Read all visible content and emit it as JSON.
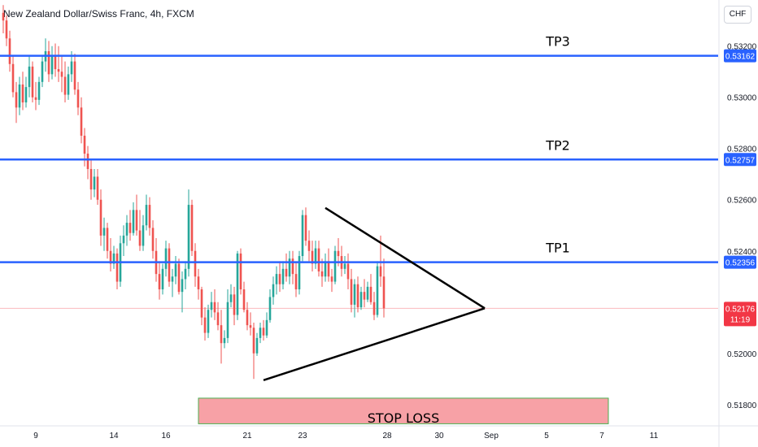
{
  "header": {
    "symbol_title": "New Zealand Dollar/Swiss Franc, 4h, FXCM",
    "currency_button": "CHF"
  },
  "colors": {
    "bull": "#26a69a",
    "bear": "#ef5350",
    "level_line": "#2962ff",
    "current_price": "#f23645",
    "stop_loss_fill": "#f7a1a6",
    "stop_loss_border": "#4caf50",
    "triangle": "#000000"
  },
  "chart_data": {
    "type": "candlestick",
    "title": "New Zealand Dollar/Swiss Franc, 4h, FXCM",
    "y_range": [
      0.5172,
      0.5338
    ],
    "y_ticks": [
      "0.53200",
      "0.53000",
      "0.52800",
      "0.52600",
      "0.52400",
      "0.52000",
      "0.51800"
    ],
    "x_ticks": [
      {
        "label": "9",
        "bar": 10
      },
      {
        "label": "14",
        "bar": 34
      },
      {
        "label": "16",
        "bar": 50
      },
      {
        "label": "21",
        "bar": 75
      },
      {
        "label": "23",
        "bar": 92
      },
      {
        "label": "28",
        "bar": 118
      },
      {
        "label": "30",
        "bar": 134
      },
      {
        "label": "Sep",
        "bar": 150
      },
      {
        "label": "5",
        "bar": 167
      },
      {
        "label": "7",
        "bar": 184
      },
      {
        "label": "11",
        "bar": 200
      }
    ],
    "levels": [
      {
        "name": "TP3",
        "value": 0.53162,
        "label": "0.53162"
      },
      {
        "name": "TP2",
        "value": 0.52757,
        "label": "0.52757"
      },
      {
        "name": "TP1",
        "value": 0.52356,
        "label": "0.52356"
      }
    ],
    "current_price": {
      "value": 0.52176,
      "label": "0.52176",
      "countdown": "11:19"
    },
    "stop_loss": {
      "label": "STOP LOSS",
      "from_bar": 60,
      "to_bar": 186,
      "top": 0.51825,
      "bottom": 0.51725
    },
    "triangle": {
      "upper_start": {
        "bar": 99,
        "value": 0.52568
      },
      "lower_start": {
        "bar": 80,
        "value": 0.51895
      },
      "apex": {
        "bar": 148,
        "value": 0.52176
      }
    },
    "candles": [
      [
        0.5333,
        0.5336,
        0.5325,
        0.533
      ],
      [
        0.533,
        0.5332,
        0.532,
        0.5323
      ],
      [
        0.5323,
        0.5326,
        0.531,
        0.5313
      ],
      [
        0.5313,
        0.5316,
        0.53,
        0.5302
      ],
      [
        0.5302,
        0.5306,
        0.529,
        0.5296
      ],
      [
        0.5296,
        0.5308,
        0.5293,
        0.5305
      ],
      [
        0.5305,
        0.531,
        0.5295,
        0.5298
      ],
      [
        0.5298,
        0.5308,
        0.5296,
        0.5304
      ],
      [
        0.5304,
        0.5316,
        0.53,
        0.5312
      ],
      [
        0.5312,
        0.5314,
        0.5298,
        0.53
      ],
      [
        0.53,
        0.5306,
        0.5295,
        0.5299
      ],
      [
        0.5299,
        0.5308,
        0.5297,
        0.5306
      ],
      [
        0.5306,
        0.5316,
        0.5304,
        0.5314
      ],
      [
        0.5314,
        0.5323,
        0.531,
        0.5318
      ],
      [
        0.5318,
        0.5322,
        0.5306,
        0.5309
      ],
      [
        0.5309,
        0.532,
        0.5307,
        0.5316
      ],
      [
        0.5316,
        0.5321,
        0.5308,
        0.5311
      ],
      [
        0.5311,
        0.532,
        0.5306,
        0.531
      ],
      [
        0.531,
        0.5316,
        0.5302,
        0.5308
      ],
      [
        0.5308,
        0.5314,
        0.5298,
        0.5301
      ],
      [
        0.5301,
        0.5312,
        0.5299,
        0.5309
      ],
      [
        0.5309,
        0.5318,
        0.5306,
        0.5314
      ],
      [
        0.5314,
        0.5317,
        0.5301,
        0.5303
      ],
      [
        0.5303,
        0.5306,
        0.5293,
        0.5296
      ],
      [
        0.5296,
        0.53,
        0.5282,
        0.5285
      ],
      [
        0.5285,
        0.5288,
        0.5273,
        0.5278
      ],
      [
        0.5278,
        0.5281,
        0.5268,
        0.5272
      ],
      [
        0.5272,
        0.5276,
        0.526,
        0.5264
      ],
      [
        0.5264,
        0.5272,
        0.5261,
        0.5269
      ],
      [
        0.5269,
        0.5272,
        0.5258,
        0.526
      ],
      [
        0.526,
        0.5264,
        0.5242,
        0.5246
      ],
      [
        0.5246,
        0.5253,
        0.524,
        0.5249
      ],
      [
        0.5249,
        0.5251,
        0.5237,
        0.524
      ],
      [
        0.524,
        0.5245,
        0.5232,
        0.5235
      ],
      [
        0.5235,
        0.5242,
        0.5233,
        0.5239
      ],
      [
        0.5239,
        0.5241,
        0.5225,
        0.5228
      ],
      [
        0.5228,
        0.5246,
        0.5226,
        0.5243
      ],
      [
        0.5243,
        0.525,
        0.5238,
        0.5246
      ],
      [
        0.5246,
        0.5254,
        0.5242,
        0.5251
      ],
      [
        0.5251,
        0.5256,
        0.5244,
        0.5247
      ],
      [
        0.5247,
        0.5259,
        0.5246,
        0.5256
      ],
      [
        0.5256,
        0.5262,
        0.5246,
        0.5248
      ],
      [
        0.5248,
        0.5256,
        0.524,
        0.5242
      ],
      [
        0.5242,
        0.5254,
        0.524,
        0.525
      ],
      [
        0.525,
        0.5262,
        0.5248,
        0.5258
      ],
      [
        0.5258,
        0.5261,
        0.5246,
        0.5249
      ],
      [
        0.5249,
        0.5252,
        0.5237,
        0.524
      ],
      [
        0.524,
        0.5245,
        0.5228,
        0.5231
      ],
      [
        0.5231,
        0.5236,
        0.5221,
        0.5225
      ],
      [
        0.5225,
        0.5235,
        0.5223,
        0.5233
      ],
      [
        0.5233,
        0.5244,
        0.523,
        0.5241
      ],
      [
        0.5241,
        0.5243,
        0.5226,
        0.5228
      ],
      [
        0.5228,
        0.5233,
        0.5222,
        0.523
      ],
      [
        0.523,
        0.5238,
        0.5227,
        0.5235
      ],
      [
        0.5235,
        0.5237,
        0.5223,
        0.5224
      ],
      [
        0.5224,
        0.5232,
        0.5216,
        0.5229
      ],
      [
        0.5229,
        0.5236,
        0.5225,
        0.5233
      ],
      [
        0.5233,
        0.5264,
        0.523,
        0.5258
      ],
      [
        0.5258,
        0.526,
        0.5238,
        0.524
      ],
      [
        0.524,
        0.5243,
        0.5226,
        0.523
      ],
      [
        0.523,
        0.5233,
        0.5221,
        0.5225
      ],
      [
        0.5225,
        0.5226,
        0.5211,
        0.5214
      ],
      [
        0.5214,
        0.5218,
        0.5205,
        0.5208
      ],
      [
        0.5208,
        0.5219,
        0.5206,
        0.5217
      ],
      [
        0.5217,
        0.5224,
        0.5214,
        0.522
      ],
      [
        0.522,
        0.5225,
        0.5213,
        0.5216
      ],
      [
        0.5216,
        0.522,
        0.5209,
        0.5211
      ],
      [
        0.5211,
        0.5217,
        0.5196,
        0.5204
      ],
      [
        0.5204,
        0.5209,
        0.5202,
        0.5206
      ],
      [
        0.5206,
        0.5225,
        0.5204,
        0.522
      ],
      [
        0.522,
        0.5227,
        0.5218,
        0.5223
      ],
      [
        0.5223,
        0.5226,
        0.5211,
        0.5215
      ],
      [
        0.5215,
        0.524,
        0.5213,
        0.5239
      ],
      [
        0.5239,
        0.5241,
        0.5223,
        0.5225
      ],
      [
        0.5225,
        0.5228,
        0.5216,
        0.5217
      ],
      [
        0.5217,
        0.522,
        0.5209,
        0.5211
      ],
      [
        0.5211,
        0.5216,
        0.5207,
        0.521
      ],
      [
        0.521,
        0.5212,
        0.519,
        0.52
      ],
      [
        0.52,
        0.5208,
        0.5199,
        0.5206
      ],
      [
        0.5206,
        0.5212,
        0.5204,
        0.521
      ],
      [
        0.521,
        0.5213,
        0.5205,
        0.5207
      ],
      [
        0.5207,
        0.5216,
        0.5206,
        0.5213
      ],
      [
        0.5213,
        0.5225,
        0.5212,
        0.5222
      ],
      [
        0.5222,
        0.523,
        0.5219,
        0.5227
      ],
      [
        0.5227,
        0.5234,
        0.5223,
        0.5231
      ],
      [
        0.5231,
        0.5236,
        0.5224,
        0.5227
      ],
      [
        0.5227,
        0.5236,
        0.5225,
        0.5233
      ],
      [
        0.5233,
        0.5239,
        0.5228,
        0.523
      ],
      [
        0.523,
        0.524,
        0.5227,
        0.5237
      ],
      [
        0.5237,
        0.524,
        0.5227,
        0.5231
      ],
      [
        0.5231,
        0.5236,
        0.5222,
        0.5225
      ],
      [
        0.5225,
        0.524,
        0.5223,
        0.5238
      ],
      [
        0.5238,
        0.5256,
        0.5236,
        0.5254
      ],
      [
        0.5254,
        0.5257,
        0.5242,
        0.5244
      ],
      [
        0.5244,
        0.5248,
        0.5236,
        0.524
      ],
      [
        0.524,
        0.5244,
        0.5232,
        0.5235
      ],
      [
        0.5235,
        0.5244,
        0.5233,
        0.5241
      ],
      [
        0.5241,
        0.5244,
        0.523,
        0.5232
      ],
      [
        0.5232,
        0.5237,
        0.5226,
        0.523
      ],
      [
        0.523,
        0.5239,
        0.5228,
        0.5236
      ],
      [
        0.5236,
        0.5241,
        0.5228,
        0.523
      ],
      [
        0.523,
        0.5233,
        0.5224,
        0.5228
      ],
      [
        0.5228,
        0.5242,
        0.5227,
        0.524
      ],
      [
        0.524,
        0.5245,
        0.5234,
        0.5238
      ],
      [
        0.5238,
        0.5242,
        0.523,
        0.5233
      ],
      [
        0.5233,
        0.5238,
        0.5231,
        0.5235
      ],
      [
        0.5235,
        0.5239,
        0.5225,
        0.5229
      ],
      [
        0.5229,
        0.5233,
        0.5216,
        0.5219
      ],
      [
        0.5219,
        0.5229,
        0.5214,
        0.5227
      ],
      [
        0.5227,
        0.523,
        0.5216,
        0.5218
      ],
      [
        0.5218,
        0.5226,
        0.5217,
        0.5224
      ],
      [
        0.5224,
        0.5229,
        0.5218,
        0.5221
      ],
      [
        0.5221,
        0.5228,
        0.522,
        0.5226
      ],
      [
        0.5226,
        0.5231,
        0.5219,
        0.522
      ],
      [
        0.522,
        0.5224,
        0.5213,
        0.5215
      ],
      [
        0.5215,
        0.5236,
        0.5214,
        0.5234
      ],
      [
        0.5234,
        0.5246,
        0.5226,
        0.523
      ],
      [
        0.523,
        0.5237,
        0.5214,
        0.52176
      ]
    ]
  }
}
